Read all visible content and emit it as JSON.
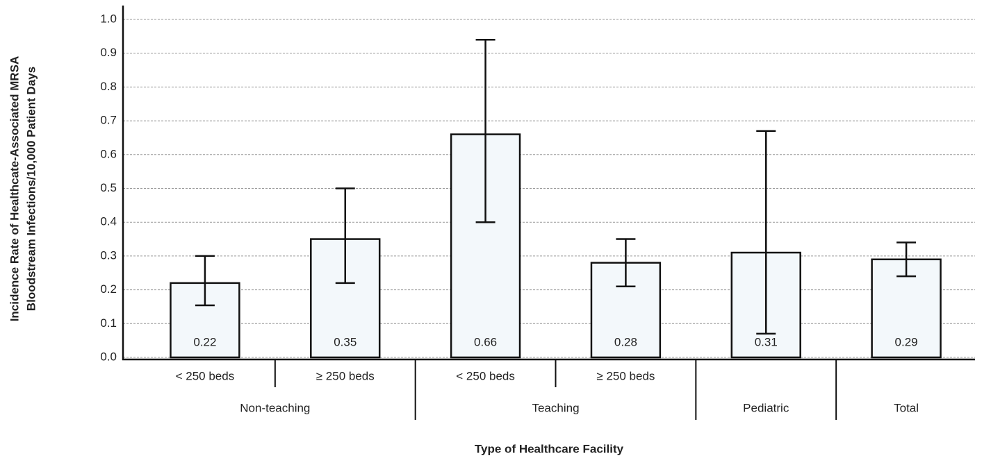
{
  "chart_data": {
    "type": "bar",
    "y_label": [
      "Incidence Rate of Healthcate-Associated MRSA",
      "Bloodstream Infections/10,000 Patient Days"
    ],
    "x_label": "Type of Healthcare Facility",
    "groups": [
      {
        "name": "Non-teaching",
        "categories": [
          "< 250 beds",
          "≥ 250 beds"
        ]
      },
      {
        "name": "Teaching",
        "categories": [
          "< 250 beds",
          "≥ 250 beds"
        ]
      },
      {
        "name": "Pediatric",
        "categories": [
          null
        ]
      },
      {
        "name": "Total",
        "categories": [
          null
        ]
      }
    ],
    "values": [
      0.22,
      0.35,
      0.66,
      0.28,
      0.31,
      0.29
    ],
    "value_labels": [
      "0.22",
      "0.35",
      "0.66",
      "0.28",
      "0.31",
      "0.29"
    ],
    "error_low": [
      0.154,
      0.22,
      0.4,
      0.21,
      0.07,
      0.24
    ],
    "error_high": [
      0.3,
      0.5,
      0.94,
      0.35,
      0.67,
      0.34
    ],
    "color": "#f3f8fb",
    "ylim": [
      0,
      1.04
    ],
    "yticks": [
      {
        "value": 0,
        "label": "0.0"
      },
      0.1,
      0.2,
      0.3,
      0.4,
      0.5,
      0.6,
      0.7,
      0.8,
      0.9,
      {
        "value": 1,
        "label": "1.0"
      }
    ],
    "grid": true
  }
}
